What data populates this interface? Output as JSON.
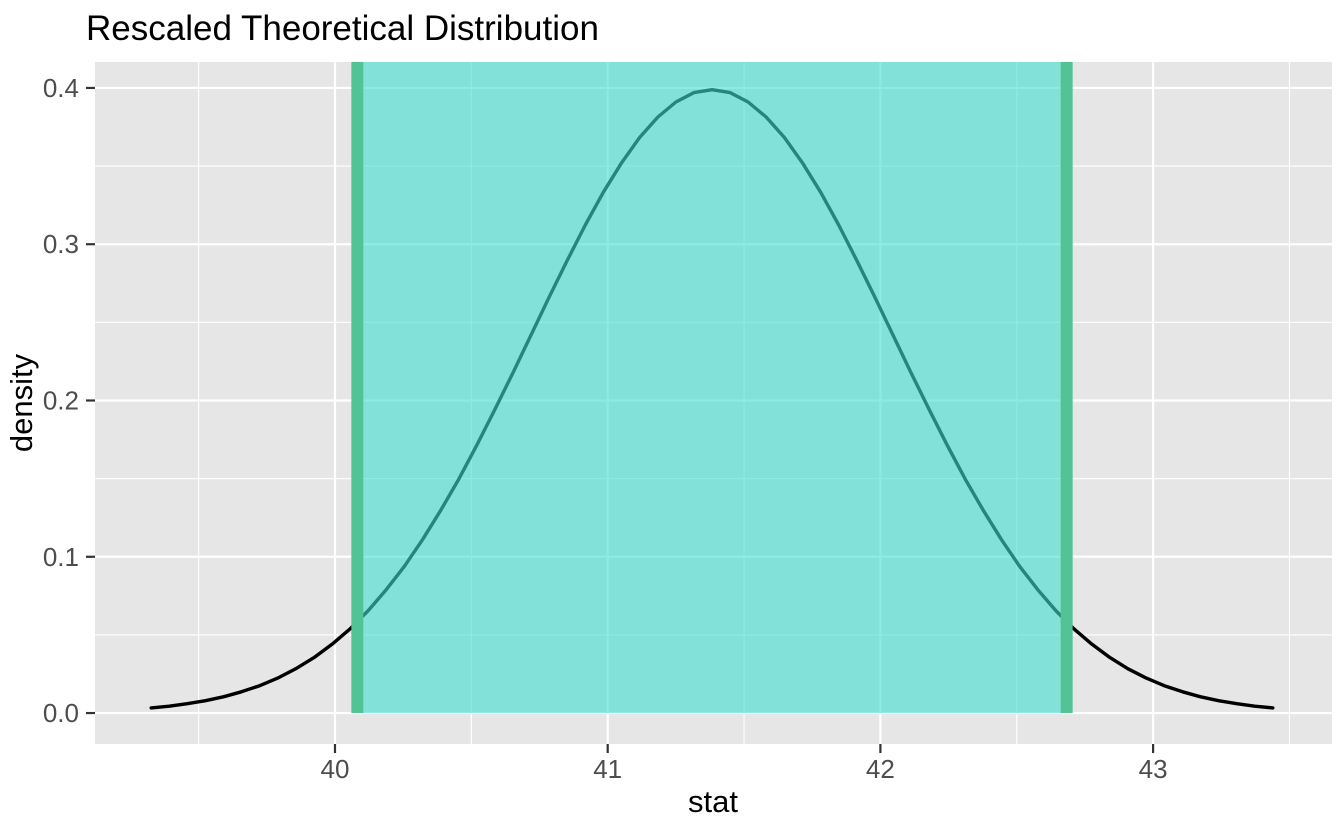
{
  "chart_data": {
    "type": "line",
    "title": "Rescaled Theoretical Distribution",
    "xlabel": "stat",
    "ylabel": "density",
    "x_ticks": [
      "40",
      "41",
      "42",
      "43"
    ],
    "x_tick_values": [
      40,
      41,
      42,
      43
    ],
    "x_minor_gridlines": [
      39.5,
      40.5,
      41.5,
      42.5,
      43.5
    ],
    "y_ticks": [
      "0.0",
      "0.1",
      "0.2",
      "0.3",
      "0.4"
    ],
    "y_tick_values": [
      0,
      0.1,
      0.2,
      0.3,
      0.4
    ],
    "y_minor_gridlines": [
      0.05,
      0.15,
      0.25,
      0.35
    ],
    "xlim": [
      39.12,
      43.656
    ],
    "ylim": [
      -0.0198,
      0.4166
    ],
    "grid": true,
    "legend": "none",
    "theme": {
      "background": "#FFFFFF",
      "panel_bg": "#E6E6E6",
      "grid_major": "#FFFFFF",
      "grid_minor": "#FFFFFF",
      "curve_color": "#000000",
      "ci_fill": "rgba(64,224,208,0.6)",
      "ci_line_color": "#52C394",
      "tick_label_color": "#4D4D4D",
      "tick_mark_color": "#333333",
      "title_color": "#000000",
      "axis_title_color": "#000000"
    },
    "confidence_interval": {
      "lower": 40.082,
      "upper": 42.683,
      "shade_from_density": 0,
      "shade_to": "panel-top"
    },
    "series": [
      {
        "name": "rescaled theoretical density curve",
        "peak": [
          41.383,
          0.3989
        ],
        "points": [
          [
            39.326,
            0.0033
          ],
          [
            39.392,
            0.0044
          ],
          [
            39.458,
            0.006
          ],
          [
            39.525,
            0.0079
          ],
          [
            39.591,
            0.0104
          ],
          [
            39.657,
            0.0136
          ],
          [
            39.724,
            0.0175
          ],
          [
            39.79,
            0.0224
          ],
          [
            39.856,
            0.0283
          ],
          [
            39.923,
            0.0355
          ],
          [
            39.989,
            0.044
          ],
          [
            40.056,
            0.054
          ],
          [
            40.122,
            0.0656
          ],
          [
            40.188,
            0.079
          ],
          [
            40.255,
            0.094
          ],
          [
            40.321,
            0.1109
          ],
          [
            40.387,
            0.1295
          ],
          [
            40.454,
            0.1497
          ],
          [
            40.52,
            0.1714
          ],
          [
            40.586,
            0.1942
          ],
          [
            40.653,
            0.2179
          ],
          [
            40.719,
            0.242
          ],
          [
            40.785,
            0.2661
          ],
          [
            40.852,
            0.2897
          ],
          [
            40.918,
            0.3123
          ],
          [
            40.984,
            0.3332
          ],
          [
            41.051,
            0.3521
          ],
          [
            41.117,
            0.3683
          ],
          [
            41.184,
            0.3814
          ],
          [
            41.25,
            0.391
          ],
          [
            41.316,
            0.397
          ],
          [
            41.383,
            0.3989
          ],
          [
            41.449,
            0.397
          ],
          [
            41.515,
            0.391
          ],
          [
            41.581,
            0.3814
          ],
          [
            41.648,
            0.3683
          ],
          [
            41.714,
            0.3521
          ],
          [
            41.781,
            0.3332
          ],
          [
            41.847,
            0.3123
          ],
          [
            41.913,
            0.2897
          ],
          [
            41.98,
            0.2661
          ],
          [
            42.046,
            0.242
          ],
          [
            42.112,
            0.2179
          ],
          [
            42.179,
            0.1942
          ],
          [
            42.245,
            0.1714
          ],
          [
            42.311,
            0.1497
          ],
          [
            42.378,
            0.1295
          ],
          [
            42.444,
            0.1109
          ],
          [
            42.51,
            0.094
          ],
          [
            42.577,
            0.079
          ],
          [
            42.643,
            0.0656
          ],
          [
            42.709,
            0.054
          ],
          [
            42.776,
            0.044
          ],
          [
            42.842,
            0.0355
          ],
          [
            42.908,
            0.0283
          ],
          [
            42.975,
            0.0224
          ],
          [
            43.041,
            0.0175
          ],
          [
            43.108,
            0.0136
          ],
          [
            43.174,
            0.0104
          ],
          [
            43.24,
            0.0079
          ],
          [
            43.307,
            0.006
          ],
          [
            43.373,
            0.0044
          ],
          [
            43.439,
            0.0033
          ]
        ]
      }
    ]
  }
}
